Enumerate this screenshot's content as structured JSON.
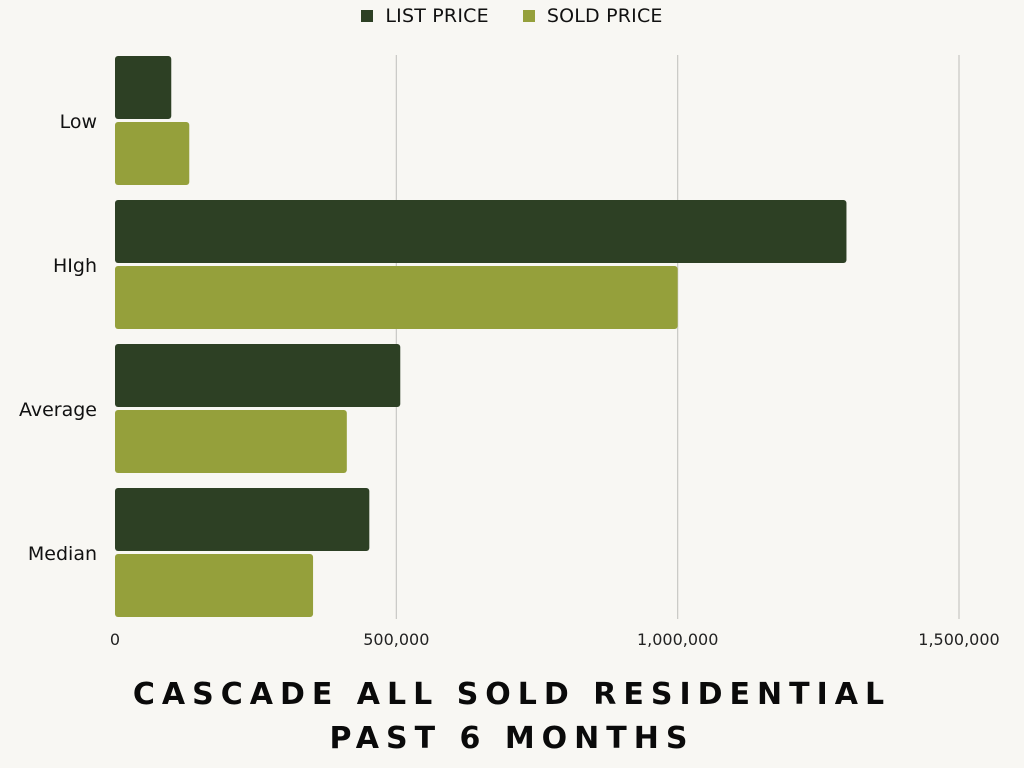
{
  "chart_data": {
    "type": "bar",
    "orientation": "horizontal",
    "title_lines": [
      "CASCADE ALL SOLD RESIDENTIAL",
      "PAST 6 MONTHS"
    ],
    "categories": [
      "Low",
      "HIgh",
      "Average",
      "Median"
    ],
    "series": [
      {
        "name": "LIST PRICE",
        "color": "#2d4024",
        "values": [
          100000,
          1300000,
          507000,
          452000
        ]
      },
      {
        "name": "SOLD PRICE",
        "color": "#95a03b",
        "values": [
          132000,
          1000000,
          412000,
          352000
        ]
      }
    ],
    "xlim": [
      0,
      1500000
    ],
    "x_ticks": [
      0,
      500000,
      1000000,
      1500000
    ],
    "x_tick_labels": [
      "0",
      "500,000",
      "1,000,000",
      "1,500,000"
    ],
    "grid": "vertical",
    "legend": "top-center"
  }
}
